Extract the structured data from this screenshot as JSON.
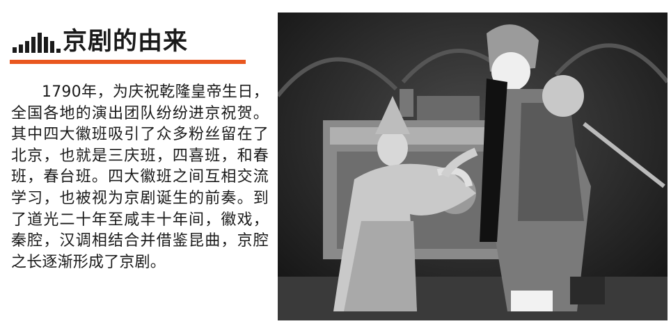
{
  "header": {
    "title": "京剧的由来",
    "bar_icon": "bar-chart-icon",
    "accent_color": "#e9571f"
  },
  "main": {
    "paragraph": "1790年，为庆祝乾隆皇帝生日，全国各地的演出团队纷纷进京祝贺。其中四大徽班吸引了众多粉丝留在了北京，也就是三庆班，四喜班，和春班，春台班。四大徽班之间互相交流学习，也被视为京剧诞生的前奏。到了道光二十年至咸丰十年间，徽戏，秦腔，汉调相结合并借鉴昆曲，京腔之长逐渐形成了京剧。"
  },
  "photo": {
    "subject": "black-and-white photo of two Peking opera performers on stage"
  }
}
